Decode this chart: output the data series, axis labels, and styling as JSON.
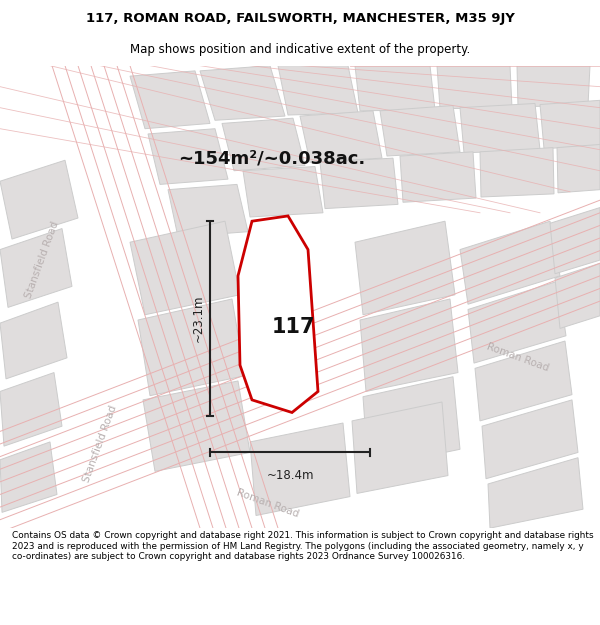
{
  "title_line1": "117, ROMAN ROAD, FAILSWORTH, MANCHESTER, M35 9JY",
  "title_line2": "Map shows position and indicative extent of the property.",
  "area_label": "~154m²/~0.038ac.",
  "property_number": "117",
  "dim_height": "~23.1m",
  "dim_width": "~18.4m",
  "footer_text": "Contains OS data © Crown copyright and database right 2021. This information is subject to Crown copyright and database rights 2023 and is reproduced with the permission of HM Land Registry. The polygons (including the associated geometry, namely x, y co-ordinates) are subject to Crown copyright and database rights 2023 Ordnance Survey 100026316.",
  "map_bg": "#f2f0f0",
  "building_fill": "#e0dddd",
  "building_edge": "#cccccc",
  "road_line_color": "#e8b0b0",
  "highlight_fill": "#ffffff",
  "highlight_edge": "#cc0000",
  "road_label_color": "#b8b0b0",
  "dim_color": "#222222",
  "title_color": "#000000",
  "footer_color": "#000000"
}
